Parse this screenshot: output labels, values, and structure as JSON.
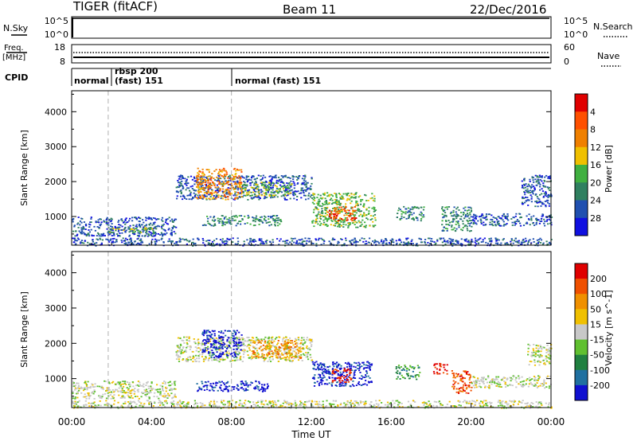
{
  "header": {
    "station": "TIGER (fitACF)",
    "beam": "Beam 11",
    "date": "22/Dec/2016"
  },
  "top_panels": {
    "nsky_label": "N.Sky",
    "nsearch_label": "N.Search",
    "nsky_ticks": [
      "10^5",
      "10^0"
    ],
    "nsearch_ticks": [
      "10^5",
      "10^0"
    ],
    "freq_label": "Freq.",
    "freq_unit": "[MHz]",
    "freq_ticks": [
      "18",
      "8"
    ],
    "nave_label": "Nave",
    "nave_ticks": [
      "60",
      "0"
    ],
    "cpid_label": "CPID",
    "cpid_segments": [
      {
        "label": "normal",
        "start_hour": 0
      },
      {
        "label": "rbsp 200",
        "start_hour": 1.83
      },
      {
        "label": "(fast) 151",
        "start_hour": 1.83
      },
      {
        "label": "normal (fast) 151",
        "start_hour": 8.0
      }
    ]
  },
  "chart_data": [
    {
      "type": "heatmap",
      "title": "",
      "xlabel": "Time UT",
      "ylabel": "Slant Range [km]",
      "xlim": [
        0,
        24
      ],
      "ylim": [
        180,
        4600
      ],
      "x_ticks": [
        "00:00",
        "04:00",
        "08:00",
        "12:00",
        "16:00",
        "20:00",
        "00:00"
      ],
      "y_ticks": [
        1000,
        2000,
        3000,
        4000
      ],
      "colorbar": {
        "label": "Power [dB]",
        "ticks": [
          4,
          8,
          12,
          16,
          20,
          24,
          28
        ],
        "colors": [
          "#1010e0",
          "#2050b0",
          "#308060",
          "#40b040",
          "#f0c000",
          "#f08000",
          "#ff5000",
          "#e00000"
        ]
      },
      "echo_regions": [
        {
          "t0": 0.0,
          "t1": 24.0,
          "r0": 180,
          "r1": 400,
          "level": 1
        },
        {
          "t0": 0.0,
          "t1": 5.2,
          "r0": 450,
          "r1": 1000,
          "level": 1
        },
        {
          "t0": 1.8,
          "t1": 4.2,
          "r0": 550,
          "r1": 700,
          "level": 3
        },
        {
          "t0": 5.2,
          "t1": 12.0,
          "r0": 1500,
          "r1": 2200,
          "level": 1
        },
        {
          "t0": 6.2,
          "t1": 8.5,
          "r0": 1500,
          "r1": 2400,
          "level": 5
        },
        {
          "t0": 8.5,
          "t1": 11.0,
          "r0": 1600,
          "r1": 2000,
          "level": 3
        },
        {
          "t0": 6.5,
          "t1": 10.5,
          "r0": 750,
          "r1": 1050,
          "level": 2
        },
        {
          "t0": 12.0,
          "t1": 15.2,
          "r0": 700,
          "r1": 1700,
          "level": 3
        },
        {
          "t0": 12.8,
          "t1": 14.2,
          "r0": 900,
          "r1": 1300,
          "level": 6
        },
        {
          "t0": 16.2,
          "t1": 17.6,
          "r0": 900,
          "r1": 1300,
          "level": 2
        },
        {
          "t0": 18.5,
          "t1": 20.0,
          "r0": 600,
          "r1": 1300,
          "level": 2
        },
        {
          "t0": 20.0,
          "t1": 24.0,
          "r0": 750,
          "r1": 1100,
          "level": 1
        },
        {
          "t0": 22.5,
          "t1": 24.0,
          "r0": 1300,
          "r1": 2200,
          "level": 1
        }
      ]
    },
    {
      "type": "heatmap",
      "title": "",
      "xlabel": "Time UT",
      "ylabel": "Slant Range [km]",
      "xlim": [
        0,
        24
      ],
      "ylim": [
        180,
        4600
      ],
      "x_ticks": [
        "00:00",
        "04:00",
        "08:00",
        "12:00",
        "16:00",
        "20:00",
        "00:00"
      ],
      "y_ticks": [
        1000,
        2000,
        3000,
        4000
      ],
      "colorbar": {
        "label": "Velocity [m s^-1]",
        "ticks": [
          "200",
          "100",
          "50",
          "15",
          "-15",
          "-50",
          "-100",
          "-200"
        ],
        "colors": [
          "#1010d0",
          "#2070a0",
          "#208040",
          "#60c030",
          "#c8c8c8",
          "#f0c000",
          "#f09000",
          "#f05000",
          "#e00000"
        ]
      },
      "echo_regions": [
        {
          "t0": 0.0,
          "t1": 24.0,
          "r0": 180,
          "r1": 400,
          "level": 4
        },
        {
          "t0": 0.0,
          "t1": 5.2,
          "r0": 450,
          "r1": 950,
          "level": 4
        },
        {
          "t0": 5.2,
          "t1": 12.0,
          "r0": 1500,
          "r1": 2200,
          "level": 4
        },
        {
          "t0": 6.5,
          "t1": 8.5,
          "r0": 1600,
          "r1": 2400,
          "level": 0
        },
        {
          "t0": 6.2,
          "t1": 9.8,
          "r0": 650,
          "r1": 950,
          "level": 0
        },
        {
          "t0": 9.0,
          "t1": 11.5,
          "r0": 1600,
          "r1": 2100,
          "level": 6
        },
        {
          "t0": 12.0,
          "t1": 15.0,
          "r0": 800,
          "r1": 1500,
          "level": 0
        },
        {
          "t0": 13.0,
          "t1": 14.0,
          "r0": 900,
          "r1": 1300,
          "level": 8
        },
        {
          "t0": 16.2,
          "t1": 17.4,
          "r0": 1000,
          "r1": 1400,
          "level": 2
        },
        {
          "t0": 18.0,
          "t1": 18.8,
          "r0": 1150,
          "r1": 1450,
          "level": 8
        },
        {
          "t0": 19.0,
          "t1": 20.0,
          "r0": 600,
          "r1": 1250,
          "level": 7
        },
        {
          "t0": 20.0,
          "t1": 24.0,
          "r0": 750,
          "r1": 1100,
          "level": 4
        },
        {
          "t0": 22.8,
          "t1": 24.0,
          "r0": 1400,
          "r1": 2000,
          "level": 4
        }
      ]
    }
  ]
}
